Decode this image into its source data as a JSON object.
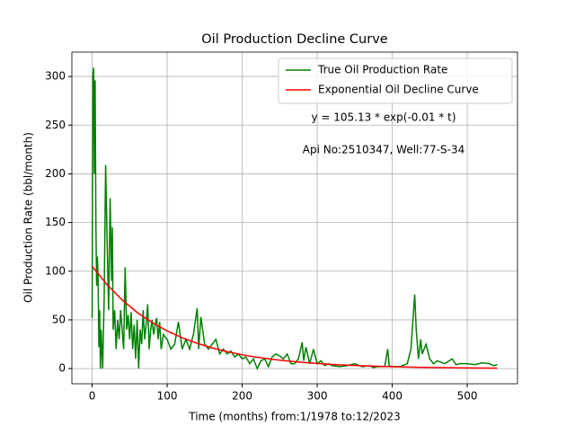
{
  "chart_data": {
    "type": "line",
    "title": "Oil Production Decline Curve",
    "xlabel": "Time (months) from:1/1978 to:12/2023",
    "ylabel": "Oil Production Rate (bbl/month)",
    "annotations": [
      "y = 105.13 * exp(-0.01 * t)",
      "Api No:2510347, Well:77-S-34"
    ],
    "xlim": [
      -27,
      567
    ],
    "ylim": [
      -15.6,
      325
    ],
    "xticks": [
      0,
      100,
      200,
      300,
      400,
      500
    ],
    "yticks": [
      0,
      50,
      100,
      150,
      200,
      250,
      300
    ],
    "grid": true,
    "legend": "upper right",
    "series": [
      {
        "name": "True Oil Production Rate",
        "color": "#008000",
        "x": [
          0,
          1,
          2,
          3,
          4,
          5,
          6,
          7,
          8,
          9,
          10,
          11,
          12,
          14,
          16,
          18,
          20,
          22,
          24,
          26,
          27,
          28,
          30,
          32,
          34,
          36,
          38,
          40,
          42,
          44,
          46,
          48,
          50,
          52,
          54,
          56,
          58,
          60,
          62,
          64,
          66,
          68,
          70,
          72,
          74,
          76,
          78,
          80,
          82,
          84,
          86,
          88,
          90,
          92,
          95,
          100,
          105,
          110,
          115,
          120,
          125,
          130,
          135,
          140,
          142,
          145,
          150,
          155,
          160,
          165,
          170,
          175,
          180,
          185,
          190,
          195,
          200,
          205,
          210,
          215,
          220,
          225,
          230,
          235,
          240,
          245,
          250,
          255,
          260,
          265,
          270,
          275,
          280,
          282,
          285,
          290,
          295,
          300,
          305,
          310,
          315,
          320,
          330,
          340,
          350,
          360,
          370,
          375,
          380,
          390,
          394,
          396,
          400,
          410,
          420,
          425,
          430,
          432,
          435,
          438,
          440,
          445,
          450,
          455,
          460,
          470,
          480,
          485,
          490,
          500,
          510,
          520,
          530,
          535,
          540
        ],
        "values": [
          52,
          300,
          309,
          200,
          296,
          150,
          85,
          115,
          90,
          22,
          60,
          0,
          40,
          0,
          70,
          209,
          130,
          60,
          175,
          90,
          145,
          40,
          60,
          20,
          50,
          30,
          60,
          40,
          20,
          104,
          40,
          55,
          30,
          58,
          20,
          45,
          10,
          50,
          0,
          40,
          25,
          60,
          30,
          45,
          66,
          20,
          40,
          50,
          35,
          45,
          52,
          30,
          48,
          20,
          35,
          30,
          20,
          25,
          48,
          20,
          30,
          20,
          35,
          62,
          20,
          53,
          25,
          20,
          25,
          30,
          15,
          20,
          15,
          18,
          12,
          15,
          10,
          12,
          5,
          10,
          0,
          8,
          10,
          2,
          12,
          15,
          13,
          10,
          15,
          5,
          5,
          10,
          27,
          8,
          22,
          5,
          20,
          5,
          8,
          3,
          5,
          3,
          2,
          3,
          5,
          2,
          3,
          1,
          2,
          2,
          20,
          3,
          2,
          2,
          5,
          20,
          76,
          40,
          10,
          30,
          15,
          25,
          10,
          5,
          8,
          5,
          10,
          4,
          5,
          5,
          4,
          6,
          5,
          3,
          4
        ]
      },
      {
        "name": "Exponential Oil Decline Curve",
        "color": "#ff0000",
        "x": [
          0,
          20,
          40,
          60,
          80,
          100,
          120,
          140,
          160,
          180,
          200,
          220,
          240,
          260,
          280,
          300,
          320,
          340,
          360,
          380,
          400,
          420,
          440,
          460,
          480,
          500,
          520,
          540
        ],
        "values": [
          105.13,
          86.07,
          70.47,
          57.7,
          47.24,
          38.68,
          31.66,
          25.93,
          21.23,
          17.38,
          14.23,
          11.65,
          9.54,
          7.81,
          6.39,
          5.23,
          4.28,
          3.51,
          2.87,
          2.35,
          1.92,
          1.58,
          1.29,
          1.06,
          0.87,
          0.71,
          0.58,
          0.47
        ]
      }
    ]
  }
}
